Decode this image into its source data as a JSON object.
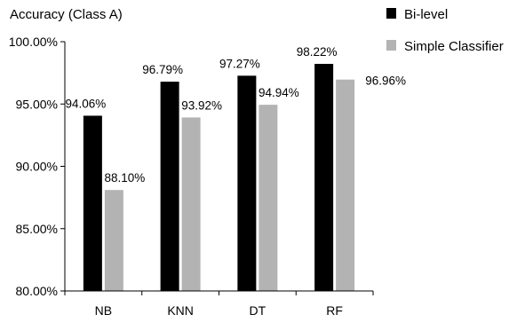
{
  "chart_data": {
    "type": "bar",
    "title": "Accuracy (Class A)",
    "categories": [
      "NB",
      "KNN",
      "DT",
      "RF"
    ],
    "series": [
      {
        "name": "Bi-level",
        "values": [
          94.06,
          96.79,
          97.27,
          98.22
        ],
        "labels": [
          "94.06%",
          "96.79%",
          "97.27%",
          "98.22%"
        ],
        "color": "#000000"
      },
      {
        "name": "Simple Classifier",
        "values": [
          88.1,
          93.92,
          94.94,
          96.96
        ],
        "labels": [
          "88.10%",
          "93.92%",
          "94.94%",
          "96.96%"
        ],
        "color": "#b3b3b3"
      }
    ],
    "ylim": [
      80,
      100
    ],
    "yticks": [
      80,
      85,
      90,
      95,
      100
    ],
    "ytick_labels": [
      "80.00%",
      "85.00%",
      "90.00%",
      "95.00%",
      "100.00%"
    ],
    "grid": false,
    "legend": "top-right"
  }
}
